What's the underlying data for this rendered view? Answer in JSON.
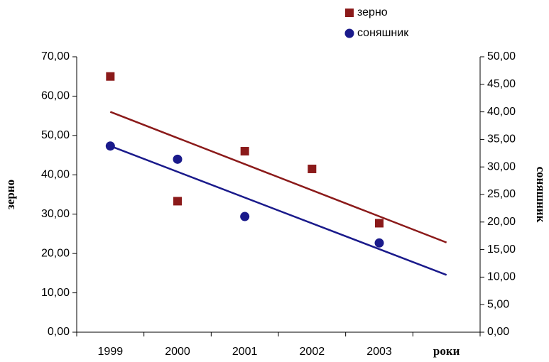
{
  "chart_data": {
    "type": "scatter",
    "x_label": "роки",
    "y_label": "зерно",
    "y2_label": "соняшник",
    "categories": [
      "1999",
      "2000",
      "2001",
      "2002",
      "2003",
      null
    ],
    "series": [
      {
        "name": "зерно",
        "color": "#8b1a1a",
        "marker": "square",
        "values": [
          65,
          33.3,
          46,
          41.5,
          27.7,
          null
        ],
        "trend": [
          56,
          22.8
        ]
      },
      {
        "name": "соняшник",
        "color": "#1a1a8b",
        "marker": "circle",
        "axis": "y2",
        "values": [
          33.8,
          31.4,
          21,
          null,
          16.2,
          null
        ],
        "trend": [
          33.8,
          10.4
        ]
      }
    ],
    "ylim": [
      0,
      70
    ],
    "yticks": [
      {
        "value": 0,
        "label": "0,00"
      },
      {
        "value": 10,
        "label": "10,00"
      },
      {
        "value": 20,
        "label": "20,00"
      },
      {
        "value": 30,
        "label": "30,00"
      },
      {
        "value": 40,
        "label": "40,00"
      },
      {
        "value": 50,
        "label": "50,00"
      },
      {
        "value": 60,
        "label": "60,00"
      },
      {
        "value": 70,
        "label": "70,00"
      }
    ],
    "y2lim": [
      0,
      50
    ],
    "y2ticks": [
      {
        "value": 0,
        "label": "0,00"
      },
      {
        "value": 5,
        "label": "5,00"
      },
      {
        "value": 10,
        "label": "10,00"
      },
      {
        "value": 15,
        "label": "15,00"
      },
      {
        "value": 20,
        "label": "20,00"
      },
      {
        "value": 25,
        "label": "25,00"
      },
      {
        "value": 30,
        "label": "30,00"
      },
      {
        "value": 35,
        "label": "35,00"
      },
      {
        "value": 40,
        "label": "40,00"
      },
      {
        "value": 45,
        "label": "45,00"
      },
      {
        "value": 50,
        "label": "50,00"
      }
    ],
    "grid": false
  }
}
